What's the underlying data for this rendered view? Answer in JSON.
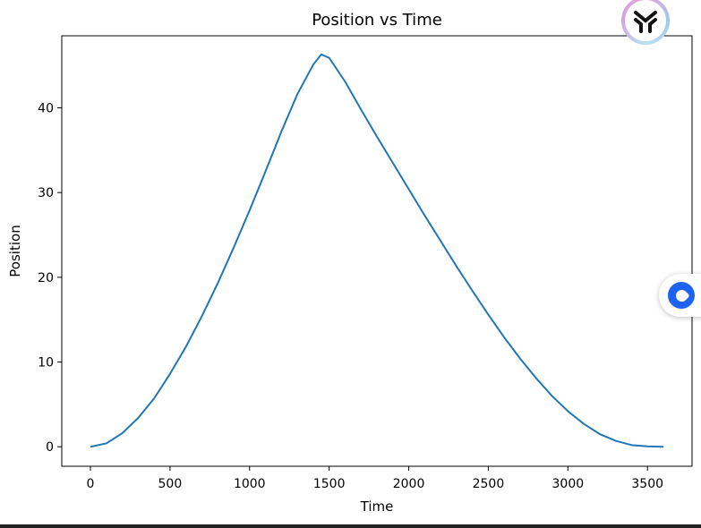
{
  "chart_data": {
    "type": "line",
    "title": "Position vs Time",
    "xlabel": "Time",
    "ylabel": "Position",
    "xlim": [
      -180,
      3780
    ],
    "ylim": [
      -2.3,
      48.5
    ],
    "xticks": [
      0,
      500,
      1000,
      1500,
      2000,
      2500,
      3000,
      3500
    ],
    "yticks": [
      0,
      10,
      20,
      30,
      40
    ],
    "grid": false,
    "legend": "none",
    "series": [
      {
        "color": "#1f77b4",
        "x": [
          0,
          100,
          200,
          300,
          400,
          500,
          600,
          700,
          800,
          900,
          1000,
          1100,
          1200,
          1300,
          1400,
          1450,
          1500,
          1600,
          1700,
          1800,
          1900,
          2000,
          2100,
          2200,
          2300,
          2400,
          2500,
          2600,
          2700,
          2800,
          2900,
          3000,
          3100,
          3200,
          3300,
          3400,
          3500,
          3600
        ],
        "y": [
          0,
          0.4,
          1.6,
          3.4,
          5.7,
          8.6,
          11.8,
          15.4,
          19.3,
          23.5,
          27.9,
          32.5,
          37.2,
          41.6,
          45.1,
          46.3,
          45.9,
          43.1,
          39.8,
          36.6,
          33.5,
          30.4,
          27.3,
          24.3,
          21.3,
          18.4,
          15.6,
          12.9,
          10.4,
          8.1,
          6.0,
          4.2,
          2.7,
          1.5,
          0.7,
          0.2,
          0.05,
          0
        ]
      }
    ]
  },
  "widgets": {
    "floating_logo_icon": "yoke-logo-icon",
    "side_chat_icon": "chat-bubble-icon"
  }
}
